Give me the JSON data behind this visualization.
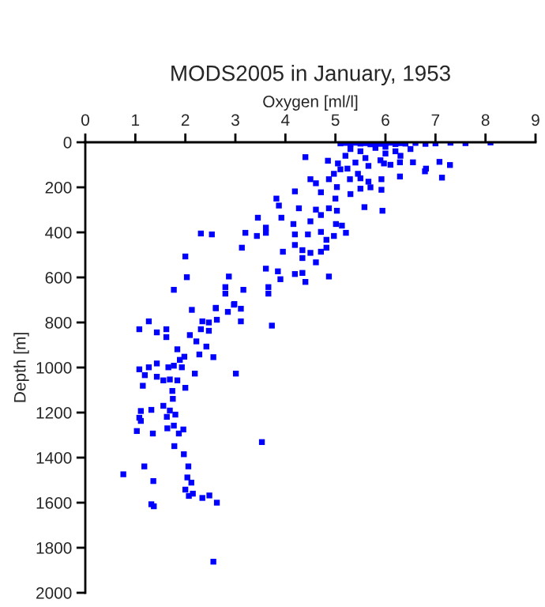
{
  "chart_data": {
    "type": "scatter",
    "title": "MODS2005 in January, 1953",
    "xlabel": "Oxygen [ml/l]",
    "ylabel": "Depth [m]",
    "xlim": [
      0,
      9
    ],
    "xticks": [
      0,
      1,
      2,
      3,
      4,
      5,
      6,
      7,
      8,
      9
    ],
    "ylim": [
      2000,
      0
    ],
    "yticks": [
      0,
      200,
      400,
      600,
      800,
      1000,
      1200,
      1400,
      1600,
      1800,
      2000
    ],
    "grid": false,
    "legend": false,
    "marker": "square",
    "series": [
      {
        "color": "#0000ff",
        "x": [
          5.1,
          5.2,
          5.3,
          5.4,
          5.5,
          5.6,
          5.7,
          5.8,
          5.9,
          6.0,
          6.1,
          6.2,
          6.3,
          6.4,
          6.6,
          6.8,
          7.0,
          7.3,
          7.6,
          8.1,
          5.3,
          5.5,
          5.8,
          6.0,
          5.2,
          5.6,
          5.4,
          5.9,
          6.2,
          6.5,
          5.1,
          5.5,
          5.7,
          5.0,
          5.3,
          6.0,
          6.3,
          6.1,
          4.4,
          4.85,
          5.05,
          5.24,
          5.45,
          5.66,
          5.97,
          6.29,
          6.55,
          6.81,
          7.08,
          7.29,
          7.13,
          6.79,
          6.29,
          5.92,
          5.66,
          5.29,
          4.97,
          4.87,
          4.5,
          4.19,
          4.61,
          5.03,
          4.71,
          5.5,
          5.92,
          5.58,
          5.94,
          3.82,
          3.87,
          4.27,
          4.61,
          4.87,
          5.03,
          4.71,
          4.5,
          3.92,
          3.45,
          4.16,
          5.01,
          5.13,
          3.61,
          2.31,
          2.53,
          3.2,
          3.43,
          3.61,
          4.19,
          4.45,
          4.71,
          4.97,
          5.21,
          4.82,
          4.19,
          3.13,
          4.34,
          4.5,
          4.71,
          4.82,
          3.95,
          4.34,
          4.61,
          2.0,
          3.61,
          3.85,
          4.19,
          4.34,
          4.87,
          3.9,
          2.03,
          2.87,
          4.4,
          3.66,
          3.16,
          2.8,
          1.77,
          3.66,
          2.8,
          2.98,
          2.61,
          2.97,
          3.11,
          2.85,
          2.13,
          2.61,
          1.27,
          1.08,
          1.43,
          1.62,
          1.62,
          2.09,
          2.22,
          2.31,
          2.47,
          2.47,
          2.34,
          2.63,
          3.11,
          3.73,
          1.84,
          2.42,
          2.28,
          1.98,
          1.89,
          2.56,
          1.43,
          1.08,
          1.27,
          1.77,
          1.93,
          1.66,
          2.19,
          3.01,
          1.19,
          1.43,
          1.56,
          1.84,
          1.69,
          1.15,
          2.0,
          1.74,
          1.75,
          1.56,
          1.11,
          1.32,
          1.69,
          1.8,
          1.08,
          1.11,
          1.63,
          1.77,
          1.64,
          1.96,
          1.03,
          1.35,
          1.87,
          1.78,
          3.53,
          1.97,
          1.18,
          2.06,
          0.76,
          1.36,
          2.04,
          2.12,
          2.0,
          2.15,
          2.07,
          2.34,
          2.48,
          2.63,
          1.32,
          1.37,
          2.56
        ],
        "values": [
          5,
          3,
          8,
          2,
          6,
          4,
          9,
          3,
          7,
          5,
          2,
          8,
          4,
          6,
          3,
          7,
          5,
          2,
          4,
          1,
          30,
          40,
          25,
          50,
          60,
          70,
          90,
          80,
          40,
          30,
          120,
          160,
          200,
          250,
          230,
          20,
          60,
          100,
          66,
          82,
          94,
          117,
          140,
          105,
          94,
          89,
          89,
          117,
          87,
          101,
          157,
          129,
          152,
          164,
          175,
          164,
          140,
          164,
          164,
          218,
          182,
          199,
          222,
          206,
          211,
          288,
          304,
          250,
          281,
          293,
          299,
          293,
          304,
          323,
          351,
          335,
          335,
          363,
          363,
          370,
          379,
          405,
          409,
          402,
          416,
          402,
          409,
          409,
          398,
          416,
          402,
          433,
          456,
          468,
          479,
          491,
          486,
          468,
          486,
          514,
          533,
          507,
          561,
          573,
          585,
          580,
          596,
          608,
          599,
          596,
          620,
          643,
          655,
          643,
          655,
          672,
          672,
          718,
          737,
          721,
          739,
          753,
          744,
          735,
          795,
          830,
          844,
          830,
          865,
          856,
          884,
          830,
          837,
          800,
          795,
          788,
          795,
          814,
          919,
          907,
          942,
          952,
          966,
          954,
          982,
          1008,
          999,
          992,
          999,
          999,
          1027,
          1027,
          1034,
          1041,
          1057,
          1057,
          1053,
          1081,
          1090,
          1104,
          1139,
          1170,
          1193,
          1188,
          1191,
          1209,
          1223,
          1237,
          1219,
          1258,
          1270,
          1275,
          1282,
          1293,
          1293,
          1349,
          1331,
          1385,
          1439,
          1439,
          1474,
          1504,
          1488,
          1511,
          1542,
          1560,
          1570,
          1579,
          1568,
          1600,
          1607,
          1616,
          1862
        ]
      }
    ]
  }
}
